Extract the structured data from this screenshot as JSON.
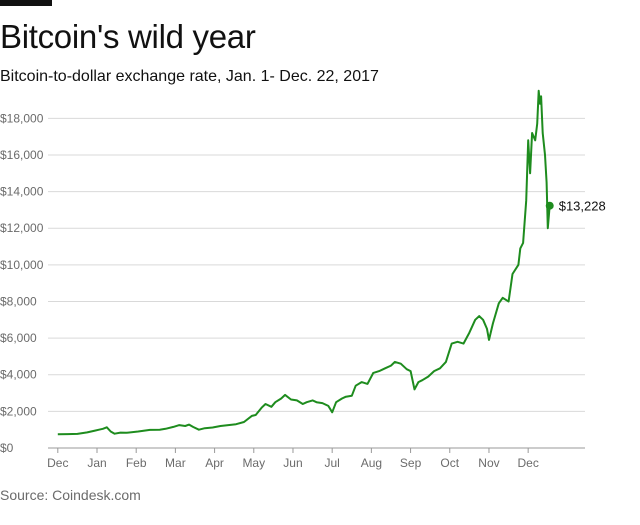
{
  "header": {
    "title": "Bitcoin's wild year",
    "subtitle": "Bitcoin-to-dollar exchange rate, Jan. 1- Dec. 22, 2017"
  },
  "footer": {
    "source": "Source: Coindesk.com"
  },
  "colors": {
    "line": "#1e8c1e",
    "grid": "#d9d9d9",
    "axis": "#999999",
    "tick_text": "#6b6b6b"
  },
  "chart_data": {
    "type": "line",
    "title": "Bitcoin's wild year",
    "subtitle": "Bitcoin-to-dollar exchange rate, Jan. 1- Dec. 22, 2017",
    "xlabel": "",
    "ylabel": "",
    "x_unit": "month (fractional, 0 = Dec. 1 2016)",
    "xlim": [
      0,
      13.7
    ],
    "ylim": [
      0,
      19000
    ],
    "x_ticks": [
      "Dec",
      "Jan",
      "Feb",
      "Mar",
      "Apr",
      "May",
      "Jun",
      "Jul",
      "Aug",
      "Sep",
      "Oct",
      "Nov",
      "Dec"
    ],
    "y_ticks": [
      0,
      2000,
      4000,
      6000,
      8000,
      10000,
      12000,
      14000,
      16000,
      18000
    ],
    "y_tick_labels": [
      "$0",
      "$2,000",
      "$4,000",
      "$6,000",
      "$8,000",
      "$10,000",
      "$12,000",
      "$14,000",
      "$16,000",
      "$18,000"
    ],
    "grid": true,
    "last_label": "$13,228",
    "last_value": 13228,
    "series": [
      {
        "values": [
          [
            0.25,
            750
          ],
          [
            0.5,
            760
          ],
          [
            0.75,
            770
          ],
          [
            1.0,
            850
          ],
          [
            1.2,
            950
          ],
          [
            1.3,
            1000
          ],
          [
            1.4,
            1050
          ],
          [
            1.5,
            1130
          ],
          [
            1.6,
            900
          ],
          [
            1.7,
            780
          ],
          [
            1.85,
            840
          ],
          [
            2.0,
            830
          ],
          [
            2.3,
            900
          ],
          [
            2.6,
            990
          ],
          [
            2.85,
            1000
          ],
          [
            3.0,
            1050
          ],
          [
            3.2,
            1150
          ],
          [
            3.35,
            1250
          ],
          [
            3.5,
            1200
          ],
          [
            3.6,
            1280
          ],
          [
            3.7,
            1150
          ],
          [
            3.85,
            1000
          ],
          [
            4.0,
            1080
          ],
          [
            4.2,
            1120
          ],
          [
            4.4,
            1200
          ],
          [
            4.6,
            1250
          ],
          [
            4.8,
            1300
          ],
          [
            5.0,
            1420
          ],
          [
            5.2,
            1750
          ],
          [
            5.3,
            1800
          ],
          [
            5.45,
            2200
          ],
          [
            5.55,
            2400
          ],
          [
            5.7,
            2250
          ],
          [
            5.8,
            2500
          ],
          [
            5.95,
            2700
          ],
          [
            6.05,
            2900
          ],
          [
            6.2,
            2650
          ],
          [
            6.35,
            2600
          ],
          [
            6.5,
            2400
          ],
          [
            6.6,
            2500
          ],
          [
            6.75,
            2600
          ],
          [
            6.85,
            2500
          ],
          [
            7.0,
            2450
          ],
          [
            7.15,
            2300
          ],
          [
            7.25,
            1950
          ],
          [
            7.35,
            2500
          ],
          [
            7.5,
            2700
          ],
          [
            7.6,
            2800
          ],
          [
            7.75,
            2850
          ],
          [
            7.85,
            3400
          ],
          [
            8.0,
            3600
          ],
          [
            8.15,
            3500
          ],
          [
            8.3,
            4100
          ],
          [
            8.45,
            4200
          ],
          [
            8.6,
            4350
          ],
          [
            8.75,
            4500
          ],
          [
            8.85,
            4700
          ],
          [
            9.0,
            4600
          ],
          [
            9.15,
            4300
          ],
          [
            9.25,
            4200
          ],
          [
            9.35,
            3200
          ],
          [
            9.45,
            3600
          ],
          [
            9.55,
            3700
          ],
          [
            9.7,
            3900
          ],
          [
            9.85,
            4200
          ],
          [
            10.0,
            4350
          ],
          [
            10.15,
            4700
          ],
          [
            10.3,
            5700
          ],
          [
            10.45,
            5800
          ],
          [
            10.6,
            5700
          ],
          [
            10.75,
            6300
          ],
          [
            10.9,
            7000
          ],
          [
            11.0,
            7200
          ],
          [
            11.1,
            7000
          ],
          [
            11.2,
            6500
          ],
          [
            11.25,
            5900
          ],
          [
            11.35,
            6800
          ],
          [
            11.5,
            7900
          ],
          [
            11.6,
            8200
          ],
          [
            11.75,
            8000
          ],
          [
            11.85,
            9500
          ],
          [
            12.0,
            10000
          ],
          [
            12.05,
            10900
          ],
          [
            12.12,
            11200
          ],
          [
            12.2,
            13500
          ],
          [
            12.25,
            16800
          ],
          [
            12.3,
            15000
          ],
          [
            12.35,
            17200
          ],
          [
            12.43,
            16800
          ],
          [
            12.48,
            17700
          ],
          [
            12.52,
            19500
          ],
          [
            12.55,
            18800
          ],
          [
            12.58,
            19200
          ],
          [
            12.62,
            17200
          ],
          [
            12.68,
            16000
          ],
          [
            12.72,
            14500
          ],
          [
            12.75,
            12000
          ],
          [
            12.8,
            13228
          ]
        ]
      }
    ]
  }
}
